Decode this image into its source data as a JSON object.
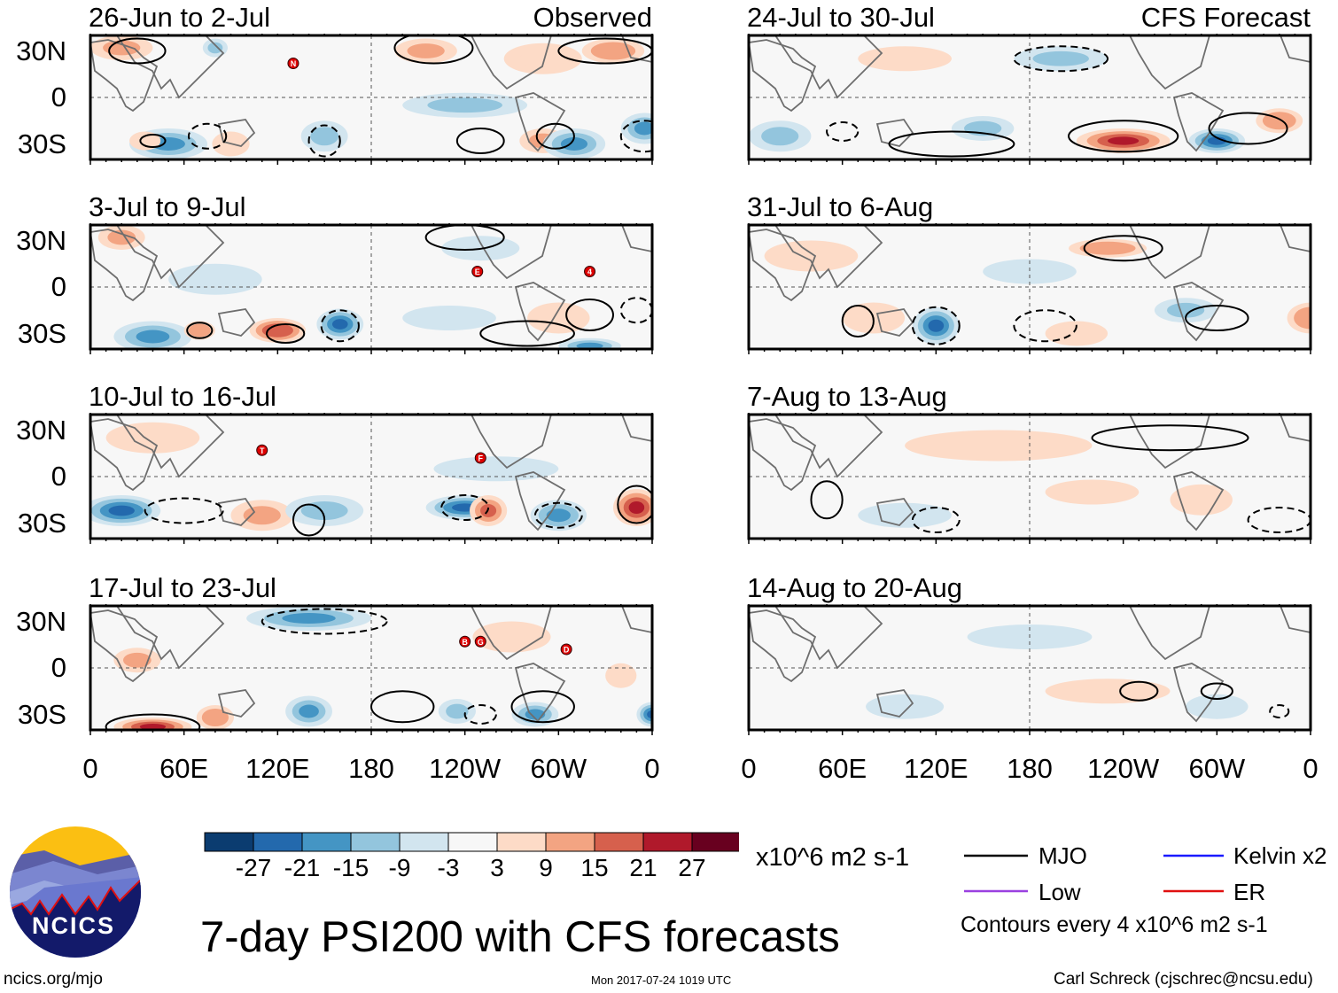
{
  "figure": {
    "title": "7-day PSI200 with CFS forecasts",
    "site": "ncics.org/mjo",
    "timestamp": "Mon 2017-07-24 1019 UTC",
    "author": "Carl Schreck (cjschrec@ncsu.edu)",
    "logo_text": "NCICS"
  },
  "axes": {
    "lat_labels": [
      "30N",
      "0",
      "30S"
    ],
    "lon_labels": [
      "0",
      "60E",
      "120E",
      "180",
      "120W",
      "60W",
      "0"
    ]
  },
  "colorbar": {
    "colors": [
      "#0b3c70",
      "#2369ad",
      "#4495c4",
      "#93c5dd",
      "#d2e5ef",
      "#f7f7f7",
      "#fddbc7",
      "#f3a482",
      "#d6604d",
      "#b0192b",
      "#68001f"
    ],
    "labels": [
      "-27",
      "-21",
      "-15",
      "-9",
      "-3",
      "3",
      "9",
      "15",
      "21",
      "27"
    ],
    "units": "x10^6 m2 s-1"
  },
  "legend": {
    "items": [
      {
        "label": "MJO",
        "color": "#000000"
      },
      {
        "label": "Kelvin x2",
        "color": "#1a1aff"
      },
      {
        "label": "Low",
        "color": "#9a40e0"
      },
      {
        "label": "ER",
        "color": "#e01010"
      }
    ],
    "note": "Contours every 4 x10^6 m2 s-1"
  },
  "panels": [
    {
      "title": "26-Jun to 2-Jul",
      "tag": "Observed",
      "column": "left",
      "anomalies": [
        [
          20,
          32,
          20,
          8,
          12
        ],
        [
          50,
          -30,
          25,
          10,
          -15
        ],
        [
          215,
          30,
          20,
          8,
          12
        ],
        [
          335,
          30,
          20,
          8,
          15
        ],
        [
          240,
          -5,
          40,
          8,
          -9
        ],
        [
          290,
          -28,
          15,
          8,
          12
        ],
        [
          310,
          -30,
          20,
          10,
          -18
        ],
        [
          355,
          -20,
          15,
          10,
          -15
        ],
        [
          90,
          -30,
          12,
          8,
          9
        ],
        [
          150,
          -25,
          15,
          10,
          -12
        ],
        [
          35,
          -28,
          10,
          6,
          9
        ],
        [
          80,
          32,
          8,
          6,
          -9
        ],
        [
          290,
          25,
          25,
          10,
          9
        ]
      ],
      "contours": [
        [
          30,
          30,
          18,
          8,
          1
        ],
        [
          220,
          32,
          25,
          10,
          1
        ],
        [
          330,
          30,
          30,
          8,
          1
        ],
        [
          298,
          -25,
          12,
          8,
          1
        ],
        [
          40,
          -28,
          8,
          4,
          1
        ],
        [
          75,
          -25,
          12,
          8,
          -1
        ],
        [
          150,
          -28,
          10,
          10,
          -1
        ],
        [
          250,
          -28,
          15,
          8,
          1
        ],
        [
          355,
          -25,
          15,
          10,
          -1
        ]
      ],
      "storms": [
        [
          130,
          22,
          "N"
        ]
      ]
    },
    {
      "title": "3-Jul to 9-Jul",
      "tag": "",
      "column": "left",
      "anomalies": [
        [
          20,
          32,
          15,
          8,
          12
        ],
        [
          40,
          -32,
          25,
          10,
          -15
        ],
        [
          120,
          -28,
          18,
          8,
          21
        ],
        [
          160,
          -24,
          15,
          10,
          -21
        ],
        [
          70,
          -28,
          10,
          6,
          15
        ],
        [
          80,
          5,
          30,
          10,
          -3
        ],
        [
          300,
          -20,
          20,
          10,
          9
        ],
        [
          320,
          -38,
          20,
          5,
          -15
        ],
        [
          230,
          -20,
          30,
          8,
          -6
        ],
        [
          250,
          25,
          25,
          8,
          -6
        ]
      ],
      "contours": [
        [
          125,
          -30,
          12,
          6,
          1
        ],
        [
          70,
          -28,
          8,
          5,
          1
        ],
        [
          160,
          -25,
          12,
          10,
          -1
        ],
        [
          280,
          -30,
          30,
          8,
          1
        ],
        [
          240,
          32,
          25,
          8,
          1
        ],
        [
          320,
          -18,
          15,
          10,
          1
        ],
        [
          350,
          -15,
          10,
          8,
          -1
        ]
      ],
      "storms": [
        [
          248,
          10,
          "E"
        ],
        [
          320,
          10,
          "4"
        ]
      ]
    },
    {
      "title": "10-Jul to 16-Jul",
      "tag": "",
      "column": "left",
      "anomalies": [
        [
          20,
          -22,
          25,
          10,
          -21
        ],
        [
          240,
          -20,
          25,
          8,
          -21
        ],
        [
          255,
          -22,
          12,
          10,
          18
        ],
        [
          350,
          -20,
          15,
          12,
          27
        ],
        [
          300,
          -25,
          18,
          10,
          -15
        ],
        [
          110,
          -25,
          20,
          10,
          12
        ],
        [
          150,
          -22,
          25,
          10,
          -9
        ],
        [
          260,
          5,
          40,
          8,
          -3
        ],
        [
          40,
          25,
          30,
          10,
          9
        ]
      ],
      "contours": [
        [
          350,
          -18,
          12,
          12,
          1
        ],
        [
          140,
          -28,
          10,
          10,
          1
        ],
        [
          240,
          -20,
          15,
          8,
          -1
        ],
        [
          300,
          -25,
          15,
          8,
          -1
        ],
        [
          60,
          -22,
          25,
          8,
          -1
        ]
      ],
      "storms": [
        [
          110,
          17,
          "T"
        ],
        [
          250,
          12,
          "F"
        ]
      ]
    },
    {
      "title": "17-Jul to 23-Jul",
      "tag": "",
      "column": "left",
      "anomalies": [
        [
          140,
          32,
          40,
          8,
          -15
        ],
        [
          40,
          -38,
          25,
          6,
          27
        ],
        [
          80,
          -32,
          12,
          8,
          15
        ],
        [
          140,
          -28,
          15,
          10,
          -18
        ],
        [
          235,
          -28,
          12,
          8,
          -9
        ],
        [
          285,
          -30,
          15,
          8,
          -15
        ],
        [
          360,
          -30,
          10,
          8,
          -21
        ],
        [
          270,
          20,
          25,
          10,
          6
        ],
        [
          30,
          5,
          15,
          8,
          12
        ],
        [
          340,
          -5,
          10,
          8,
          9
        ]
      ],
      "contours": [
        [
          150,
          30,
          40,
          8,
          -1
        ],
        [
          40,
          -38,
          30,
          8,
          1
        ],
        [
          200,
          -25,
          20,
          10,
          1
        ],
        [
          290,
          -25,
          20,
          10,
          1
        ],
        [
          250,
          -30,
          10,
          6,
          -1
        ]
      ],
      "storms": [
        [
          240,
          17,
          "B"
        ],
        [
          250,
          17,
          "G"
        ],
        [
          305,
          12,
          "D"
        ]
      ]
    },
    {
      "title": "24-Jul to 30-Jul",
      "tag": "CFS Forecast",
      "column": "right",
      "anomalies": [
        [
          240,
          -28,
          30,
          8,
          24
        ],
        [
          300,
          -28,
          18,
          8,
          -21
        ],
        [
          340,
          -15,
          15,
          8,
          15
        ],
        [
          200,
          25,
          30,
          8,
          -9
        ],
        [
          100,
          25,
          30,
          8,
          9
        ],
        [
          150,
          -20,
          20,
          8,
          -9
        ],
        [
          20,
          -25,
          20,
          10,
          -9
        ]
      ],
      "contours": [
        [
          240,
          -25,
          35,
          10,
          1
        ],
        [
          60,
          -22,
          10,
          6,
          -1
        ],
        [
          130,
          -30,
          40,
          8,
          1
        ],
        [
          320,
          -20,
          25,
          10,
          1
        ],
        [
          200,
          25,
          30,
          8,
          -1
        ]
      ],
      "storms": []
    },
    {
      "title": "31-Jul to 6-Aug",
      "tag": "",
      "column": "right",
      "anomalies": [
        [
          120,
          -25,
          15,
          12,
          -21
        ],
        [
          80,
          -20,
          20,
          10,
          9
        ],
        [
          230,
          25,
          25,
          6,
          15
        ],
        [
          360,
          -20,
          15,
          10,
          15
        ],
        [
          280,
          -15,
          20,
          8,
          -12
        ],
        [
          210,
          -30,
          20,
          8,
          9
        ],
        [
          40,
          20,
          30,
          10,
          6
        ],
        [
          180,
          10,
          30,
          8,
          -6
        ]
      ],
      "contours": [
        [
          120,
          -25,
          15,
          12,
          -1
        ],
        [
          70,
          -22,
          10,
          10,
          1
        ],
        [
          240,
          25,
          25,
          8,
          1
        ],
        [
          190,
          -25,
          20,
          10,
          -1
        ],
        [
          300,
          -20,
          20,
          8,
          1
        ]
      ],
      "storms": []
    },
    {
      "title": "7-Aug to 13-Aug",
      "tag": "",
      "column": "right",
      "anomalies": [
        [
          160,
          20,
          60,
          10,
          6
        ],
        [
          100,
          -25,
          30,
          8,
          -6
        ],
        [
          290,
          -15,
          20,
          10,
          6
        ],
        [
          220,
          -10,
          30,
          8,
          6
        ]
      ],
      "contours": [
        [
          270,
          25,
          50,
          8,
          1
        ],
        [
          50,
          -15,
          10,
          12,
          1
        ],
        [
          120,
          -28,
          15,
          8,
          -1
        ],
        [
          340,
          -28,
          20,
          8,
          -1
        ]
      ],
      "storms": []
    },
    {
      "title": "14-Aug to 20-Aug",
      "tag": "",
      "column": "right",
      "anomalies": [
        [
          180,
          20,
          40,
          8,
          -3
        ],
        [
          230,
          -15,
          40,
          8,
          6
        ],
        [
          100,
          -25,
          25,
          8,
          -3
        ],
        [
          300,
          -25,
          20,
          8,
          -3
        ]
      ],
      "contours": [
        [
          250,
          -15,
          12,
          6,
          1
        ],
        [
          300,
          -15,
          10,
          5,
          1
        ],
        [
          340,
          -28,
          6,
          4,
          -1
        ]
      ],
      "storms": []
    }
  ]
}
